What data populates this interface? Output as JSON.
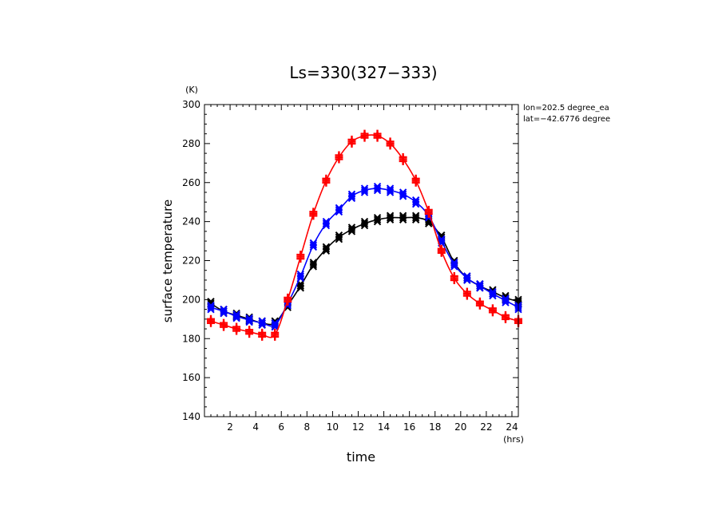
{
  "chart_data": {
    "type": "line",
    "title": "Ls=330(327−333)",
    "xlabel": "time",
    "ylabel": "surface temperature",
    "x_unit": "(hrs)",
    "y_unit": "(K)",
    "xlim": [
      0,
      24.5
    ],
    "ylim": [
      140,
      300
    ],
    "x_ticks": [
      2,
      4,
      6,
      8,
      10,
      12,
      14,
      16,
      18,
      20,
      22,
      24
    ],
    "y_ticks": [
      140,
      160,
      180,
      200,
      220,
      240,
      260,
      280,
      300
    ],
    "annotations": [
      "lon=202.5 degree_ea",
      "lat=−42.6776 degree"
    ],
    "grid": false,
    "x": [
      0.5,
      1.5,
      2.5,
      3.5,
      4.5,
      5.5,
      6.5,
      7.5,
      8.5,
      9.5,
      10.5,
      11.5,
      12.5,
      13.5,
      14.5,
      15.5,
      16.5,
      17.5,
      18.5,
      19.5,
      20.5,
      21.5,
      22.5,
      23.5,
      24.5
    ],
    "series": [
      {
        "color": "#ff0000",
        "marker": "+",
        "values": [
          189,
          187,
          185,
          183.5,
          182,
          182,
          200,
          222,
          244,
          261,
          273,
          281,
          284,
          284,
          280,
          272,
          261,
          245,
          225,
          211,
          203,
          198,
          194.5,
          191,
          189
        ]
      },
      {
        "color": "#0000ff",
        "marker": "x",
        "values": [
          196,
          194,
          191.5,
          189.5,
          188,
          187,
          198,
          212,
          228,
          239,
          246,
          253,
          256,
          257,
          256,
          254,
          250,
          243,
          230,
          218,
          211,
          207,
          203,
          199.5,
          196
        ]
      },
      {
        "color": "#000000",
        "marker": "x",
        "values": [
          198,
          194,
          192,
          190,
          188,
          188,
          197,
          207,
          218,
          226,
          232,
          236,
          239,
          241,
          242,
          242,
          242,
          240,
          232,
          219,
          211,
          207,
          204,
          201,
          199
        ]
      }
    ]
  }
}
